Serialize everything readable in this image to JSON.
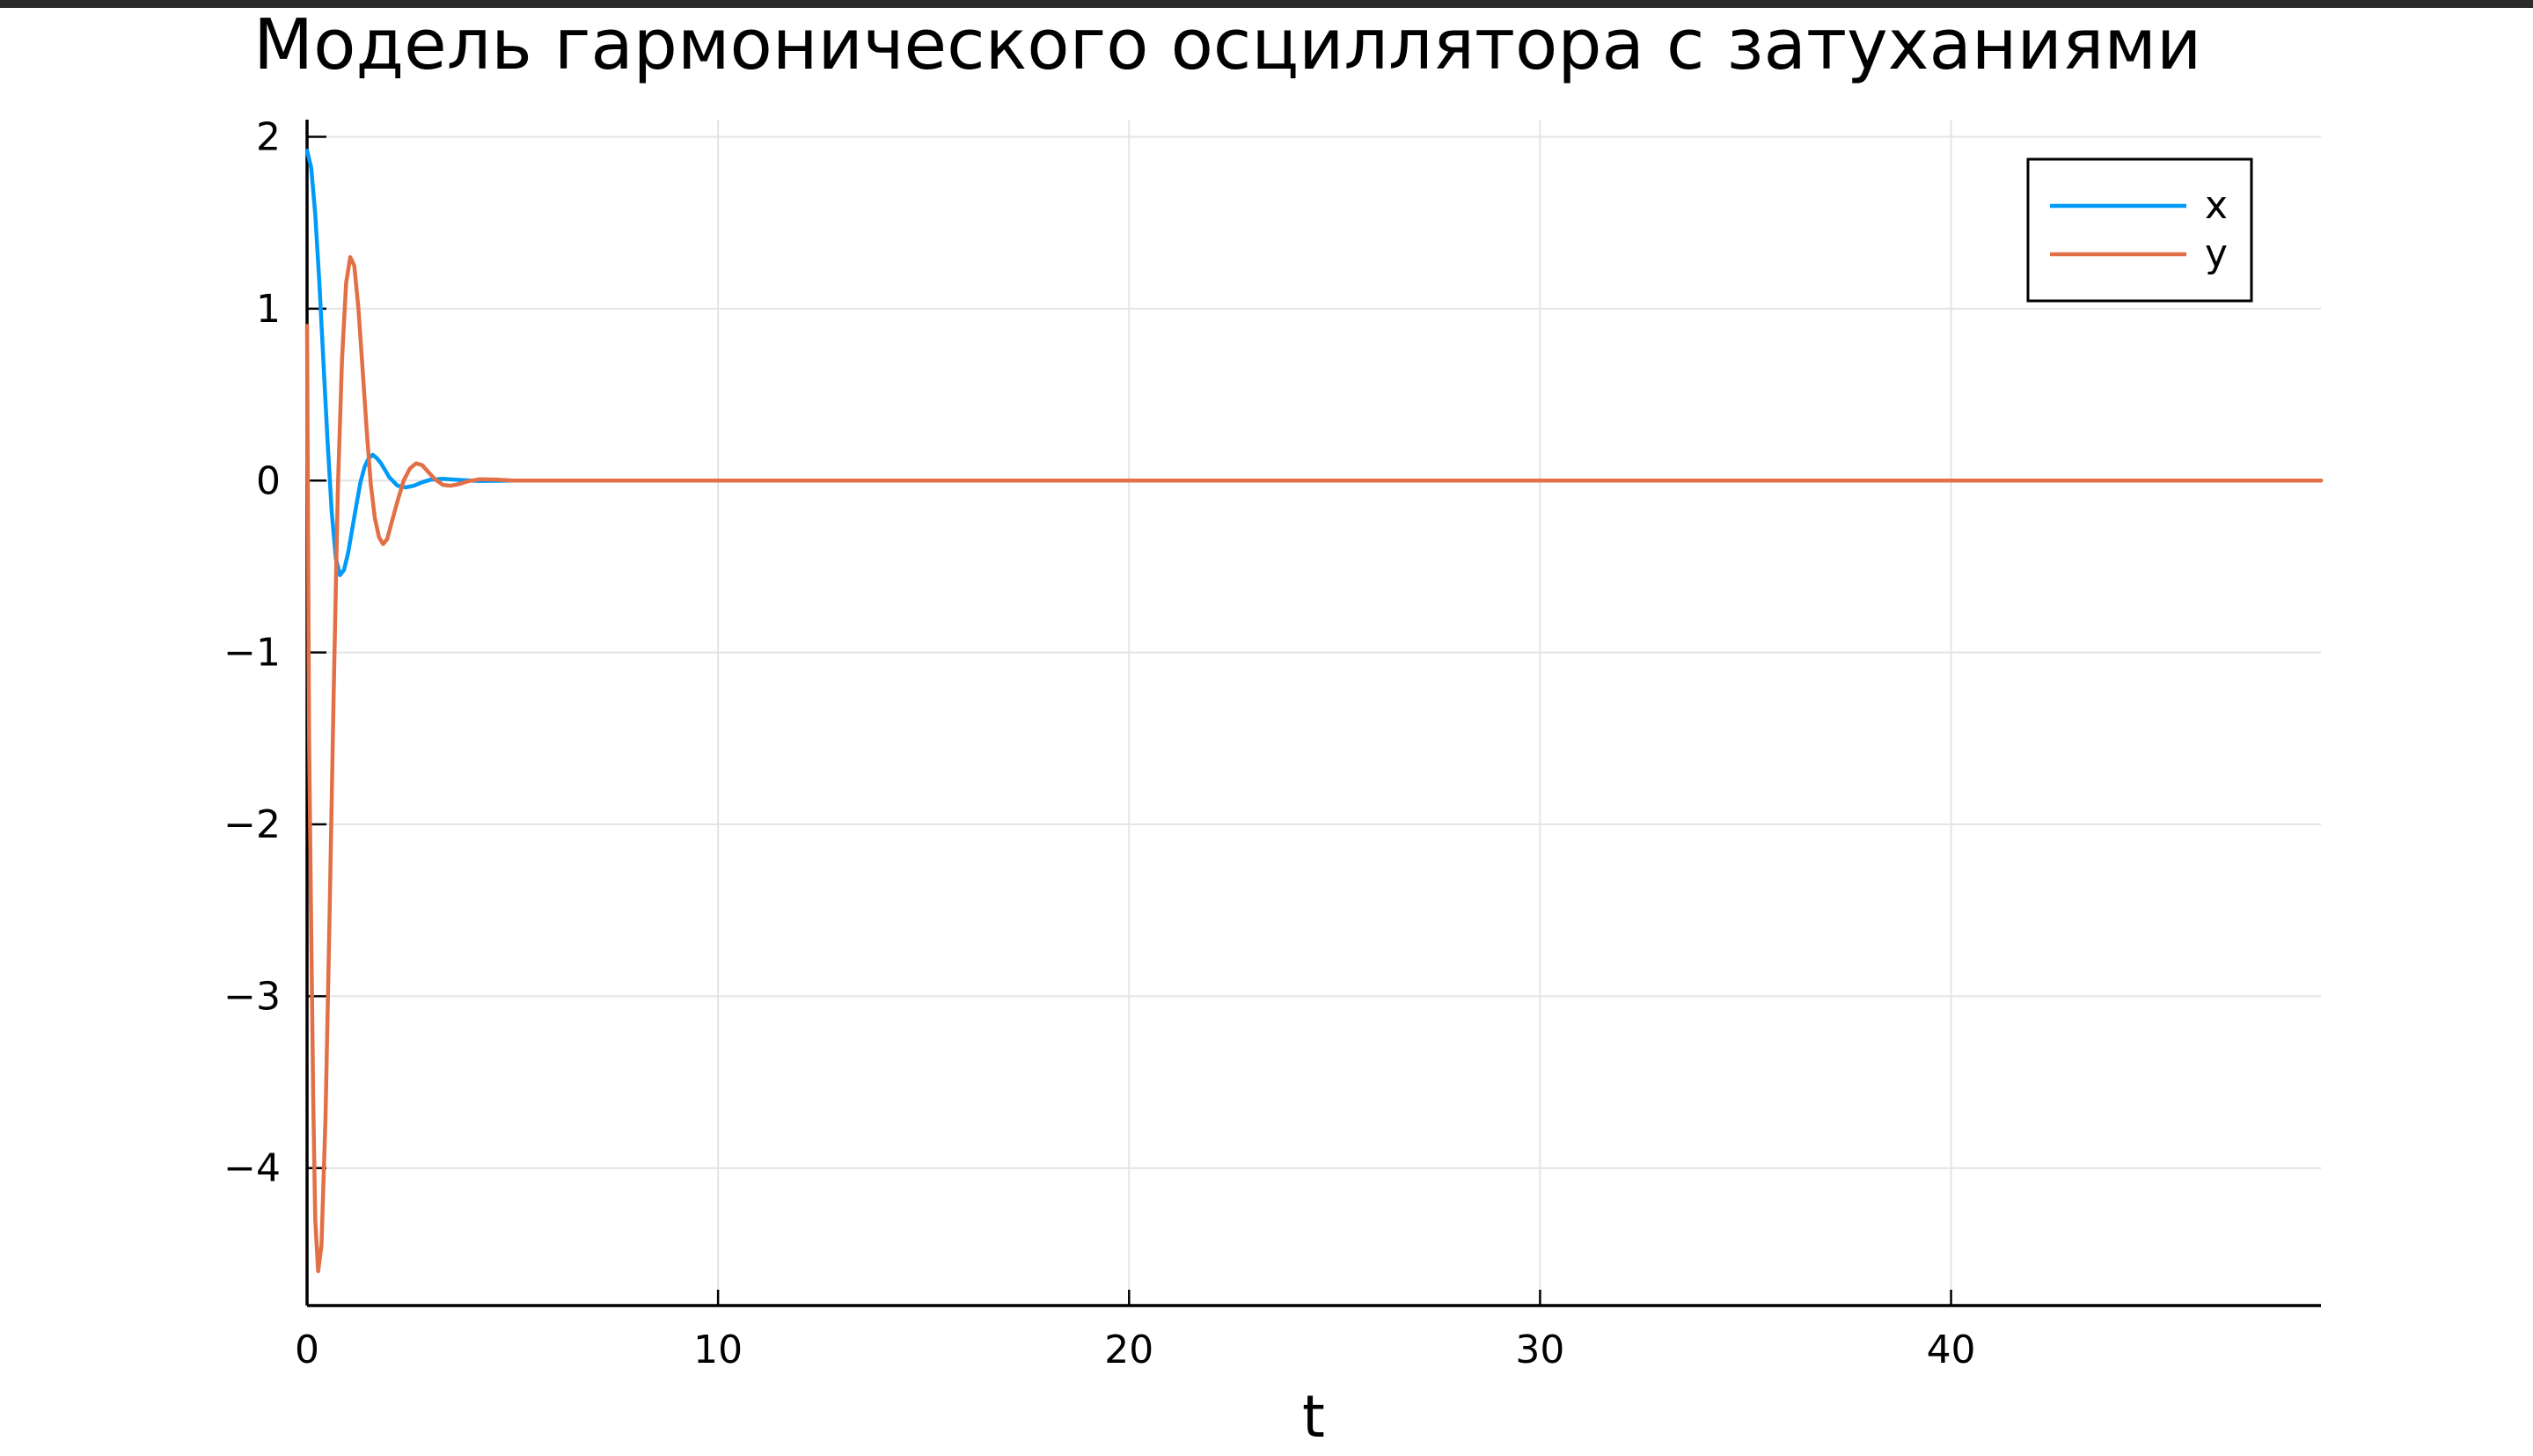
{
  "chart_data": {
    "type": "line",
    "title": "Модель гармонического осциллятора с затуханиями",
    "xlabel": "t",
    "ylabel": "",
    "xlim": [
      0,
      49
    ],
    "ylim": [
      -4.8,
      2.1
    ],
    "x_ticks": [
      0,
      10,
      20,
      30,
      40
    ],
    "x_tick_labels": [
      "0",
      "10",
      "20",
      "30",
      "40"
    ],
    "y_ticks": [
      2,
      1,
      0,
      -1,
      -2,
      -3,
      -4
    ],
    "y_tick_labels": [
      "2",
      "1",
      "0",
      "−1",
      "−2",
      "−3",
      "−4"
    ],
    "grid": true,
    "legend_position": "top-right",
    "series": [
      {
        "name": "x",
        "color": "#009af9",
        "points": [
          [
            0,
            1.92
          ],
          [
            0.1,
            1.82
          ],
          [
            0.2,
            1.55
          ],
          [
            0.3,
            1.15
          ],
          [
            0.4,
            0.68
          ],
          [
            0.5,
            0.22
          ],
          [
            0.6,
            -0.18
          ],
          [
            0.7,
            -0.45
          ],
          [
            0.8,
            -0.55
          ],
          [
            0.9,
            -0.52
          ],
          [
            1.0,
            -0.42
          ],
          [
            1.1,
            -0.28
          ],
          [
            1.2,
            -0.14
          ],
          [
            1.3,
            -0.01
          ],
          [
            1.4,
            0.08
          ],
          [
            1.5,
            0.13
          ],
          [
            1.6,
            0.15
          ],
          [
            1.7,
            0.13
          ],
          [
            1.8,
            0.1
          ],
          [
            1.9,
            0.06
          ],
          [
            2.0,
            0.02
          ],
          [
            2.2,
            -0.03
          ],
          [
            2.4,
            -0.04
          ],
          [
            2.6,
            -0.03
          ],
          [
            2.8,
            -0.01
          ],
          [
            3.0,
            0.005
          ],
          [
            3.3,
            0.01
          ],
          [
            3.7,
            0.004
          ],
          [
            4.2,
            -0.002
          ],
          [
            5.0,
            0.0
          ],
          [
            10,
            0
          ],
          [
            20,
            0
          ],
          [
            30,
            0
          ],
          [
            40,
            0
          ],
          [
            49,
            0
          ]
        ]
      },
      {
        "name": "y",
        "color": "#e26f46",
        "points": [
          [
            0,
            0.9
          ],
          [
            0.05,
            -1.5
          ],
          [
            0.1,
            -2.6
          ],
          [
            0.15,
            -3.6
          ],
          [
            0.2,
            -4.3
          ],
          [
            0.27,
            -4.6
          ],
          [
            0.35,
            -4.45
          ],
          [
            0.45,
            -3.7
          ],
          [
            0.55,
            -2.5
          ],
          [
            0.65,
            -1.2
          ],
          [
            0.75,
            -0.05
          ],
          [
            0.85,
            0.7
          ],
          [
            0.95,
            1.15
          ],
          [
            1.05,
            1.3
          ],
          [
            1.15,
            1.25
          ],
          [
            1.25,
            1.0
          ],
          [
            1.35,
            0.65
          ],
          [
            1.45,
            0.3
          ],
          [
            1.55,
            -0.02
          ],
          [
            1.65,
            -0.22
          ],
          [
            1.75,
            -0.33
          ],
          [
            1.85,
            -0.37
          ],
          [
            1.95,
            -0.34
          ],
          [
            2.05,
            -0.25
          ],
          [
            2.2,
            -0.12
          ],
          [
            2.35,
            0.0
          ],
          [
            2.5,
            0.07
          ],
          [
            2.65,
            0.1
          ],
          [
            2.8,
            0.09
          ],
          [
            2.95,
            0.05
          ],
          [
            3.1,
            0.01
          ],
          [
            3.3,
            -0.025
          ],
          [
            3.5,
            -0.03
          ],
          [
            3.7,
            -0.02
          ],
          [
            3.9,
            -0.005
          ],
          [
            4.2,
            0.008
          ],
          [
            4.6,
            0.006
          ],
          [
            5.0,
            0.0
          ],
          [
            6.0,
            0.0
          ],
          [
            10,
            0
          ],
          [
            20,
            0
          ],
          [
            30,
            0
          ],
          [
            40,
            0
          ],
          [
            49,
            0
          ]
        ]
      }
    ]
  }
}
